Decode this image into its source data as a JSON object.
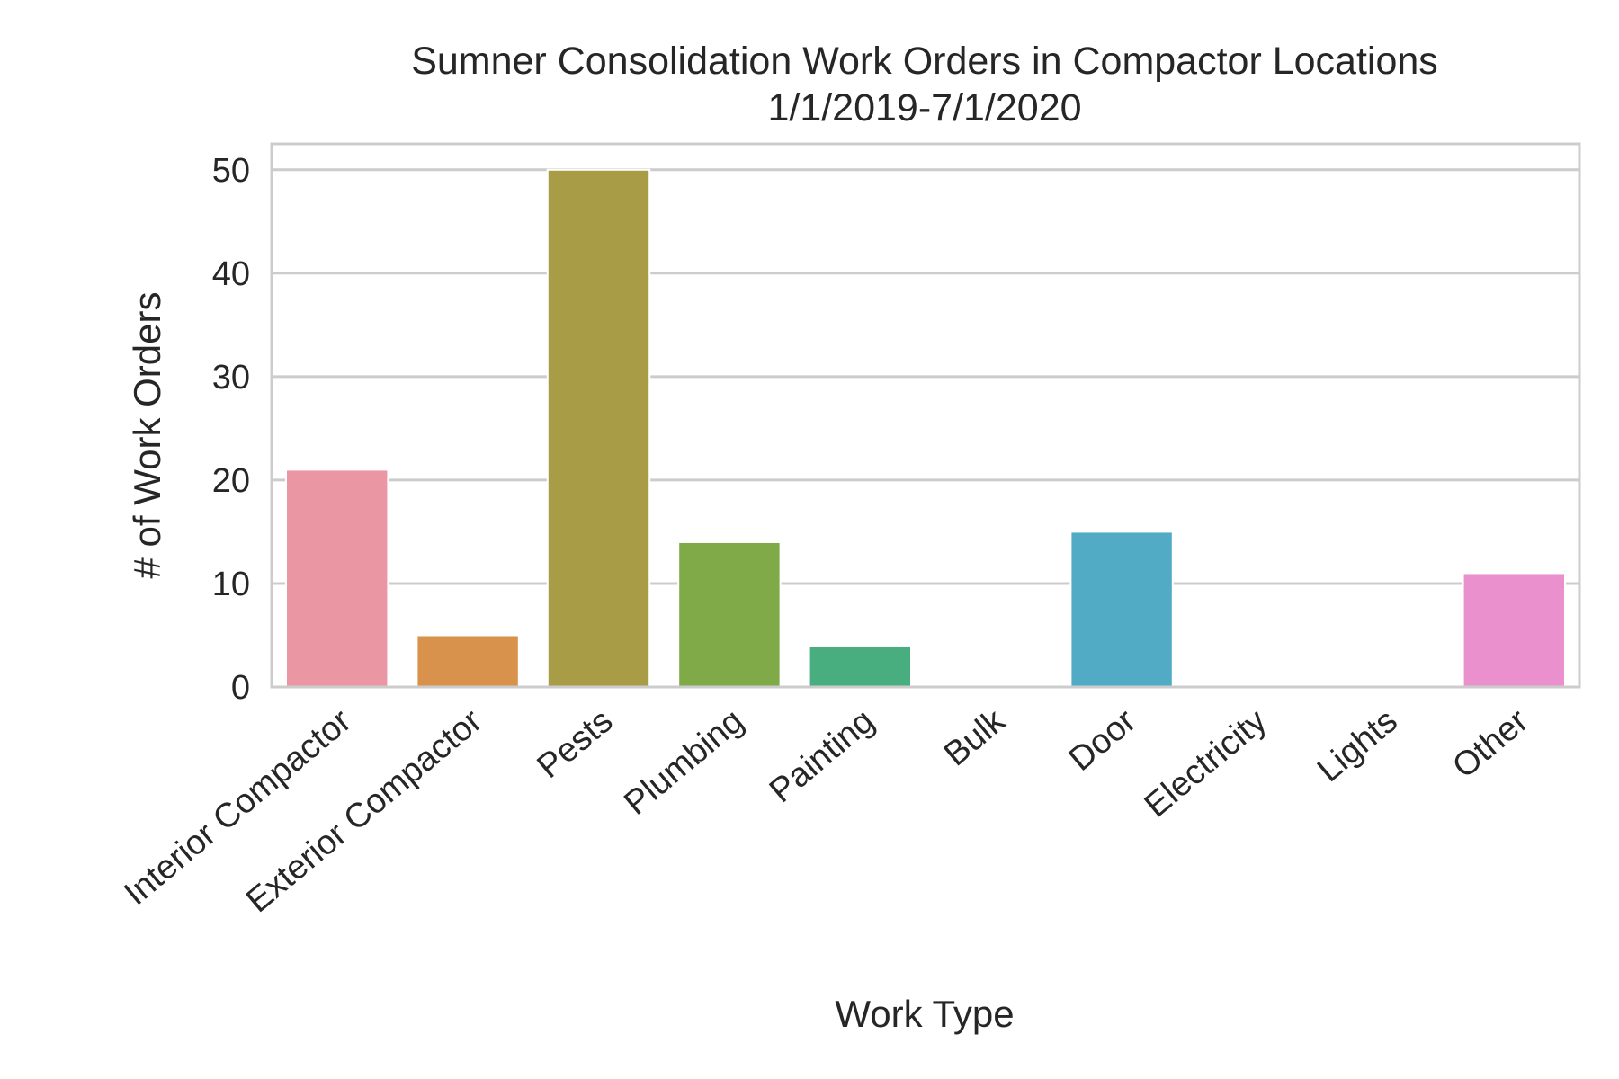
{
  "chart_data": {
    "type": "bar",
    "title": "Sumner Consolidation Work Orders in Compactor Locations",
    "subtitle": "1/1/2019-7/1/2020",
    "xlabel": "Work Type",
    "ylabel": "# of Work Orders",
    "categories": [
      "Interior Compactor",
      "Exterior Compactor",
      "Pests",
      "Plumbing",
      "Painting",
      "Bulk",
      "Door",
      "Electricity",
      "Lights",
      "Other"
    ],
    "values": [
      21,
      5,
      50,
      14,
      4,
      0,
      15,
      0,
      0,
      11
    ],
    "colors": [
      "#ea96a3",
      "#d8924c",
      "#a99c47",
      "#80a947",
      "#49ae7f",
      "#4bab9b",
      "#51abc5",
      "#8ca7e4",
      "#d491ef",
      "#ea90cd"
    ],
    "yticks": [
      0,
      10,
      20,
      30,
      40,
      50
    ],
    "ylim": [
      0,
      52.5
    ],
    "grid": true,
    "legend": "none"
  }
}
